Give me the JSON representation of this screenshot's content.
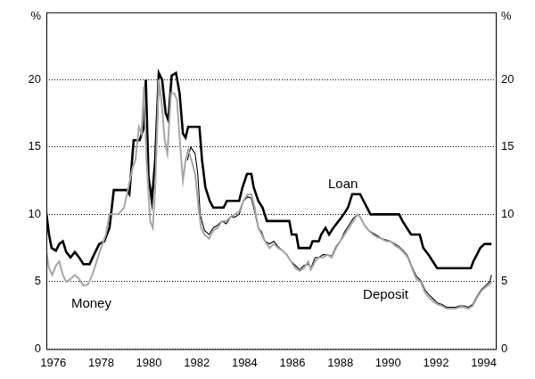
{
  "chart_data": {
    "type": "line",
    "y_label": "%",
    "y2_label": "%",
    "xlim": [
      1975.71,
      1994.5
    ],
    "xticks": [
      1976,
      1978,
      1980,
      1982,
      1984,
      1986,
      1988,
      1990,
      1992,
      1994
    ],
    "ylim": [
      0,
      25
    ],
    "yticks": [
      0,
      5,
      10,
      15,
      20
    ],
    "y2lim": [
      0,
      25
    ],
    "y2ticks": [
      0,
      5,
      10,
      15,
      20
    ],
    "grid": true,
    "series": [
      {
        "name": "Money",
        "color": "#a6a6a6",
        "x": [
          1975.71,
          1975.82,
          1975.96,
          1976.11,
          1976.25,
          1976.4,
          1976.54,
          1976.72,
          1976.9,
          1977.08,
          1977.26,
          1977.45,
          1977.63,
          1977.81,
          1977.99,
          1978.2,
          1978.35,
          1978.71,
          1978.96,
          1979.14,
          1979.32,
          1979.43,
          1979.58,
          1979.69,
          1979.79,
          1979.9,
          1980.05,
          1980.16,
          1980.26,
          1980.41,
          1980.52,
          1980.66,
          1980.77,
          1980.92,
          1981.06,
          1981.17,
          1981.31,
          1981.42,
          1981.53,
          1981.64,
          1981.78,
          1981.93,
          1982.07,
          1982.18,
          1982.32,
          1982.51,
          1982.69,
          1982.87,
          1983.05,
          1983.23,
          1983.41,
          1983.59,
          1983.77,
          1983.95,
          1984.13,
          1984.28,
          1984.42,
          1984.57,
          1984.71,
          1984.85,
          1985.04,
          1985.22,
          1985.4,
          1985.58,
          1985.76,
          1985.94,
          1986.12,
          1986.3,
          1986.48,
          1986.66,
          1986.77,
          1986.95,
          1987.1,
          1987.28,
          1987.46,
          1987.64,
          1987.82,
          1988.0,
          1988.18,
          1988.36,
          1988.54,
          1988.72,
          1988.83,
          1989.01,
          1989.19,
          1989.37,
          1989.55,
          1989.73,
          1989.91,
          1990.09,
          1990.28,
          1990.46,
          1990.64,
          1990.82,
          1991.0,
          1991.18,
          1991.36,
          1991.54,
          1991.72,
          1991.9,
          1992.08,
          1992.26,
          1992.44,
          1992.81,
          1992.99,
          1993.17,
          1993.35,
          1993.53,
          1993.71,
          1993.89,
          1994.07,
          1994.25,
          1994.32
        ],
        "values": [
          7.2,
          6.0,
          5.5,
          6.2,
          6.5,
          5.5,
          5.0,
          5.2,
          5.5,
          5.2,
          4.7,
          4.8,
          5.5,
          6.5,
          7.5,
          8.5,
          10.0,
          10.0,
          10.5,
          12.0,
          13.5,
          14.0,
          16.5,
          16.0,
          19.5,
          14.0,
          9.5,
          9.0,
          12.0,
          20.0,
          18.5,
          15.5,
          14.5,
          19.0,
          19.0,
          18.5,
          15.0,
          12.5,
          14.0,
          14.8,
          14.0,
          13.0,
          10.5,
          9.0,
          8.5,
          8.2,
          8.8,
          9.0,
          9.5,
          9.5,
          9.8,
          10.0,
          10.2,
          11.0,
          11.5,
          11.5,
          10.5,
          9.0,
          8.5,
          8.0,
          7.5,
          7.8,
          7.5,
          7.3,
          7.0,
          6.5,
          6.0,
          5.8,
          6.0,
          6.5,
          5.9,
          6.5,
          6.8,
          6.8,
          7.0,
          6.8,
          7.5,
          8.0,
          8.5,
          9.0,
          9.5,
          10.0,
          9.8,
          9.2,
          8.8,
          8.5,
          8.3,
          8.2,
          8.0,
          8.0,
          7.7,
          7.5,
          7.2,
          6.8,
          6.0,
          5.2,
          5.0,
          4.2,
          3.8,
          3.5,
          3.3,
          3.2,
          3.0,
          3.0,
          3.1,
          3.1,
          3.0,
          3.2,
          3.8,
          4.3,
          4.6,
          4.8,
          5.0
        ]
      },
      {
        "name": "Deposit",
        "color": "#000000",
        "x": [
          1981.6,
          1981.75,
          1981.93,
          1982.04,
          1982.14,
          1982.32,
          1982.51,
          1982.69,
          1982.87,
          1983.05,
          1983.23,
          1983.41,
          1983.59,
          1983.77,
          1983.95,
          1984.13,
          1984.28,
          1984.42,
          1984.57,
          1984.71,
          1984.85,
          1985.04,
          1985.22,
          1985.4,
          1985.58,
          1985.76,
          1985.94,
          1986.12,
          1986.3,
          1986.48,
          1986.66,
          1986.77,
          1986.95,
          1987.1,
          1987.28,
          1987.46,
          1987.64,
          1987.82,
          1988.0,
          1988.18,
          1988.36,
          1988.54,
          1988.72,
          1988.83,
          1989.01,
          1989.19,
          1989.37,
          1989.55,
          1989.73,
          1989.91,
          1990.09,
          1990.28,
          1990.46,
          1990.64,
          1990.82,
          1991.0,
          1991.18,
          1991.36,
          1991.54,
          1991.72,
          1991.9,
          1992.08,
          1992.26,
          1992.44,
          1992.81,
          1992.99,
          1993.17,
          1993.35,
          1993.53,
          1993.71,
          1993.89,
          1994.07,
          1994.25,
          1994.32
        ],
        "values": [
          14.0,
          15.0,
          14.5,
          13.0,
          10.0,
          8.8,
          8.5,
          9.0,
          9.2,
          9.5,
          9.3,
          9.8,
          9.8,
          10.0,
          11.0,
          11.3,
          11.2,
          10.2,
          9.0,
          8.7,
          8.0,
          7.8,
          8.0,
          7.6,
          7.3,
          7.0,
          6.5,
          6.2,
          5.9,
          6.2,
          6.3,
          6.0,
          6.8,
          6.8,
          7.0,
          7.0,
          6.9,
          7.6,
          8.0,
          8.7,
          9.2,
          9.7,
          10.0,
          9.8,
          9.2,
          8.8,
          8.6,
          8.4,
          8.2,
          8.1,
          8.0,
          7.8,
          7.6,
          7.3,
          6.9,
          6.1,
          5.4,
          5.1,
          4.4,
          4.0,
          3.7,
          3.4,
          3.3,
          3.1,
          3.1,
          3.2,
          3.2,
          3.1,
          3.3,
          3.9,
          4.4,
          4.7,
          5.0,
          5.5
        ]
      },
      {
        "name": "Loan",
        "color": "#000000",
        "x": [
          1975.71,
          1975.82,
          1975.93,
          1976.11,
          1976.25,
          1976.4,
          1976.54,
          1976.72,
          1976.9,
          1977.08,
          1977.26,
          1977.52,
          1977.7,
          1977.92,
          1978.13,
          1978.35,
          1978.53,
          1979.07,
          1979.18,
          1979.36,
          1979.61,
          1979.79,
          1979.87,
          1979.98,
          1980.12,
          1980.26,
          1980.41,
          1980.55,
          1980.7,
          1980.81,
          1980.95,
          1981.13,
          1981.28,
          1981.42,
          1981.53,
          1981.64,
          1982.11,
          1982.22,
          1982.36,
          1982.54,
          1982.69,
          1983.12,
          1983.26,
          1983.77,
          1983.91,
          1984.1,
          1984.28,
          1984.38,
          1984.57,
          1984.75,
          1984.93,
          1985.87,
          1985.97,
          1986.16,
          1986.26,
          1986.73,
          1986.84,
          1987.1,
          1987.2,
          1987.38,
          1987.53,
          1987.71,
          1987.93,
          1988.14,
          1988.32,
          1988.5,
          1988.83,
          1988.97,
          1989.12,
          1989.26,
          1990.46,
          1990.6,
          1990.78,
          1990.96,
          1991.32,
          1991.47,
          1991.69,
          1991.87,
          1992.05,
          1993.46,
          1993.56,
          1993.71,
          1993.85,
          1994.03,
          1994.32
        ],
        "values": [
          10.1,
          8.5,
          7.5,
          7.3,
          7.8,
          8.0,
          7.2,
          6.8,
          7.2,
          6.8,
          6.3,
          6.3,
          7.0,
          7.8,
          8.0,
          9.0,
          11.8,
          11.8,
          11.5,
          15.5,
          15.5,
          16.5,
          20.0,
          12.8,
          11.0,
          14.0,
          20.5,
          20.0,
          17.5,
          17.0,
          20.3,
          20.5,
          19.0,
          16.0,
          15.7,
          16.5,
          16.5,
          14.0,
          12.0,
          11.0,
          10.5,
          10.5,
          11.0,
          11.0,
          12.0,
          13.0,
          13.0,
          12.0,
          11.0,
          10.5,
          9.5,
          9.5,
          8.5,
          8.5,
          7.5,
          7.5,
          8.0,
          8.0,
          8.5,
          9.0,
          8.5,
          9.0,
          9.5,
          10.0,
          10.5,
          11.5,
          11.5,
          11.0,
          10.5,
          10.0,
          10.0,
          9.5,
          9.0,
          8.5,
          8.5,
          7.5,
          7.0,
          6.5,
          6.0,
          6.0,
          6.5,
          7.0,
          7.5,
          7.8,
          7.8
        ]
      }
    ]
  }
}
